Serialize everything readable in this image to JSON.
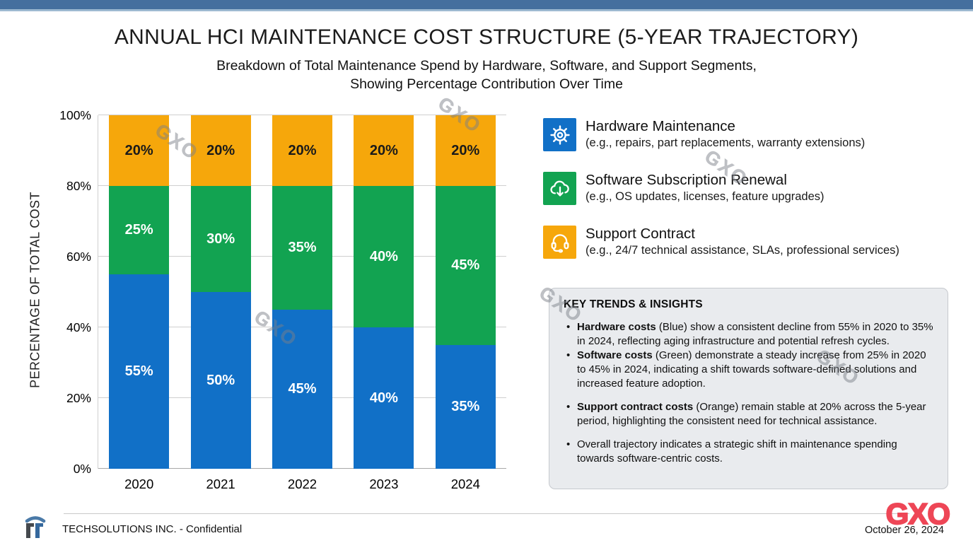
{
  "slide": {
    "title": "ANNUAL HCI MAINTENANCE COST STRUCTURE (5-YEAR TRAJECTORY)",
    "subtitle_line1": "Breakdown of Total Maintenance Spend by Hardware, Software, and Support Segments,",
    "subtitle_line2": "Showing Percentage Contribution Over Time"
  },
  "chart_data": {
    "type": "bar",
    "stacked": true,
    "categories": [
      "2020",
      "2021",
      "2022",
      "2023",
      "2024"
    ],
    "series": [
      {
        "name": "Hardware Maintenance",
        "color": "#1170c7",
        "label_color": "#ffffff",
        "values": [
          55,
          50,
          45,
          40,
          35
        ]
      },
      {
        "name": "Software Subscription Renewal",
        "color": "#12a351",
        "label_color": "#ffffff",
        "values": [
          25,
          30,
          35,
          40,
          45
        ]
      },
      {
        "name": "Support Contract",
        "color": "#f6a70b",
        "label_color": "#1a1a1a",
        "values": [
          20,
          20,
          20,
          20,
          20
        ]
      }
    ],
    "xlabel": "",
    "ylabel": "PERCENTAGE OF TOTAL COST",
    "ylim": [
      0,
      100
    ],
    "yticks": [
      "0%",
      "20%",
      "40%",
      "60%",
      "80%",
      "100%"
    ],
    "grid": true,
    "legend_position": "right",
    "bar_label_format": "percent"
  },
  "legend": {
    "items": [
      {
        "icon": "gear-icon",
        "color": "#1170c7",
        "title": "Hardware Maintenance",
        "desc": "(e.g., repairs, part replacements, warranty extensions)"
      },
      {
        "icon": "cloud-download-icon",
        "color": "#12a351",
        "title": "Software Subscription Renewal",
        "desc": "(e.g., OS updates, licenses, feature upgrades)"
      },
      {
        "icon": "headset-icon",
        "color": "#f6a70b",
        "title": "Support Contract",
        "desc": "(e.g., 24/7 technical assistance, SLAs, professional services)"
      }
    ]
  },
  "insights": {
    "title": "KEY TRENDS & INSIGHTS",
    "bullets": [
      {
        "lead": "Hardware costs",
        "rest": " (Blue) show a consistent decline from 55% in 2020 to 35% in 2024, reflecting aging infrastructure and potential refresh cycles."
      },
      {
        "lead": "Software costs",
        "rest": " (Green) demonstrate a steady increase from 25% in 2020 to 45% in 2024, indicating a shift towards software-defined solutions and increased feature adoption."
      },
      {
        "lead": "Support contract costs",
        "rest": " (Orange) remain stable at 20% across the 5-year period, highlighting the consistent need for technical assistance."
      },
      {
        "lead": "",
        "rest": "Overall trajectory indicates a strategic shift in maintenance spending towards software-centric costs."
      }
    ]
  },
  "watermark": {
    "text": "GXO"
  },
  "footer": {
    "company": "TECHSOLUTIONS INC. - Confidential",
    "brand": "GXO",
    "brand_color": "#ee4656",
    "date": "October 26, 2024"
  },
  "colors": {
    "top_bar": "#456f9e",
    "top_bar_strip": "#9db9d1",
    "insights_bg": "#e9ebee",
    "hardware_blue": "#1170c7",
    "software_green": "#12a351",
    "support_orange": "#f6a70b"
  }
}
